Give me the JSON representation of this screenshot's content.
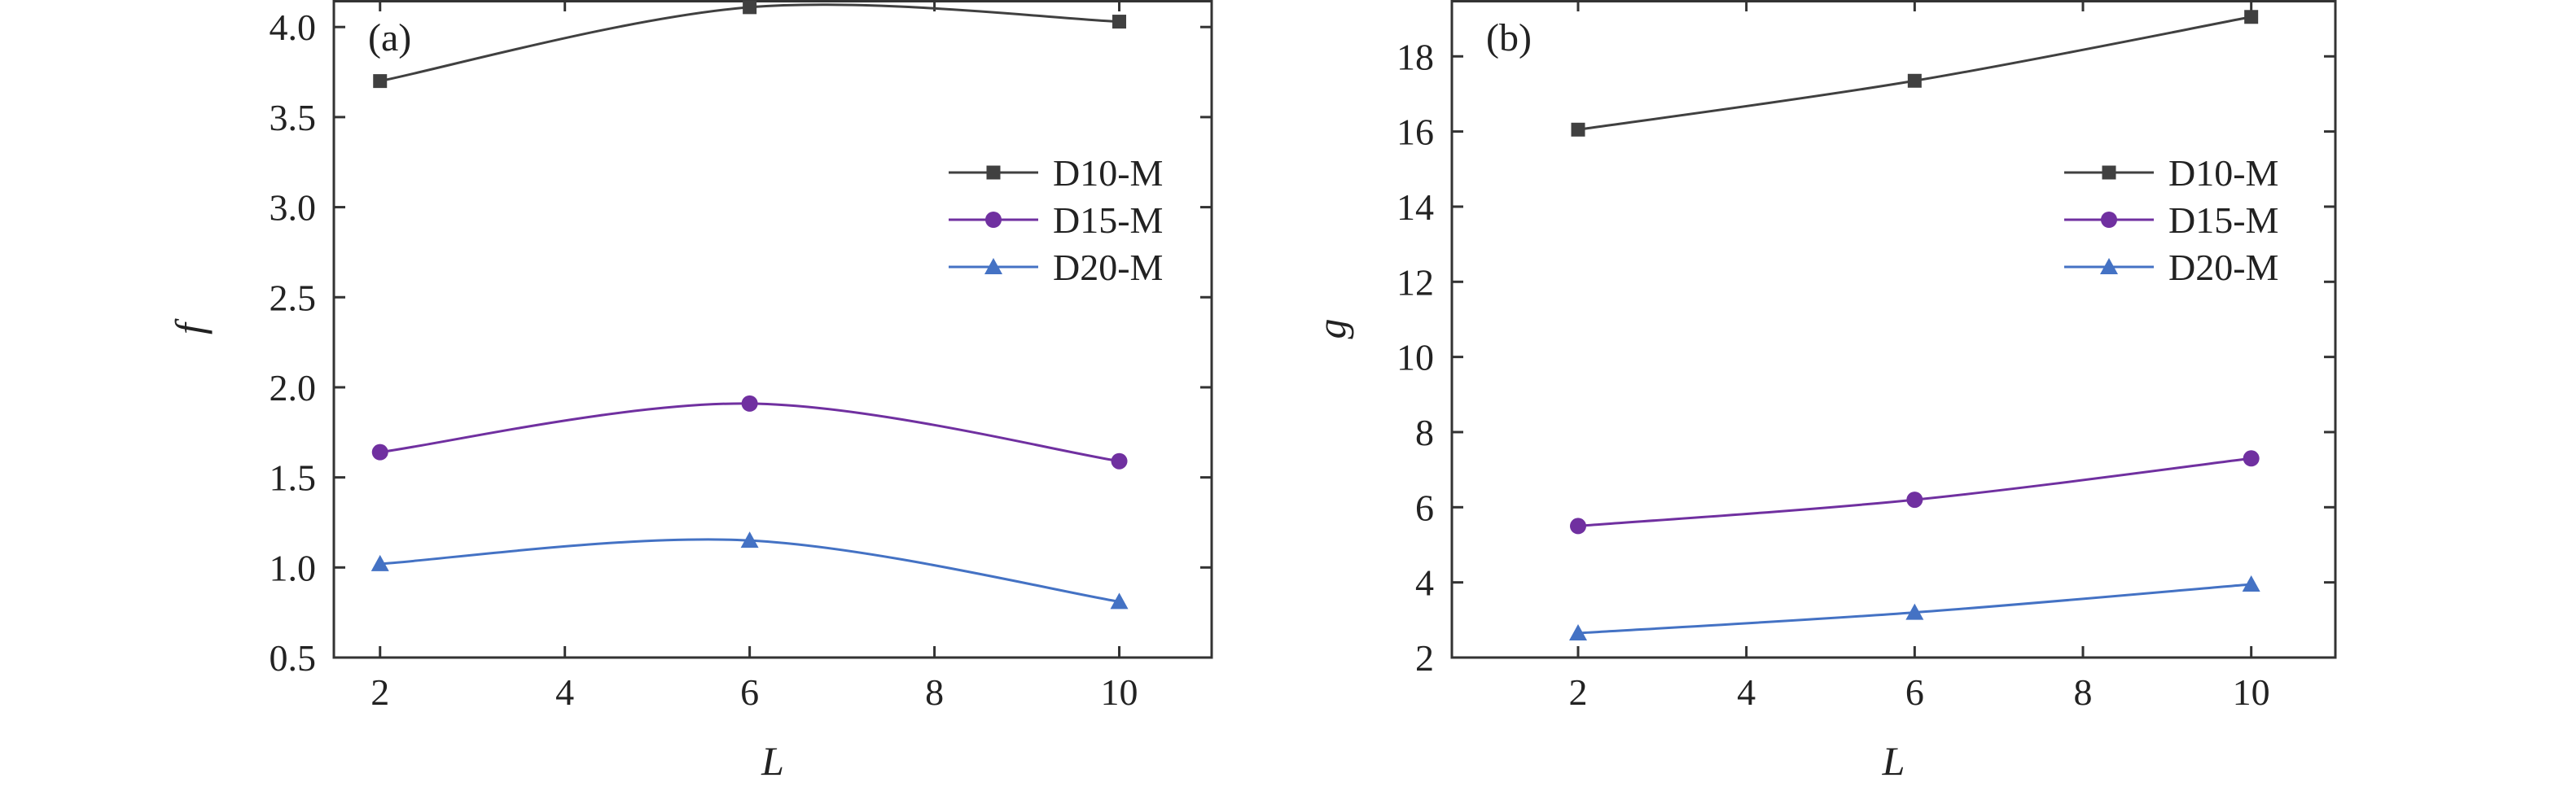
{
  "chart_data": [
    {
      "type": "line",
      "panel_label": "(a)",
      "xlabel": "L",
      "ylabel": "f",
      "x": [
        2,
        6,
        10
      ],
      "xlim": [
        1.5,
        11
      ],
      "ylim": [
        0.5,
        4.15
      ],
      "xticks": [
        2,
        4,
        6,
        8,
        10
      ],
      "yticks": [
        "0.5",
        "1.0",
        "1.5",
        "2.0",
        "2.5",
        "3.0",
        "3.5",
        "4.0"
      ],
      "grid": false,
      "legend_position": "right",
      "series": [
        {
          "name": "D10-M",
          "marker": "square",
          "color": "#404040",
          "values": [
            3.7,
            4.11,
            4.03
          ]
        },
        {
          "name": "D15-M",
          "marker": "circle",
          "color": "#7030a0",
          "values": [
            1.64,
            1.91,
            1.59
          ]
        },
        {
          "name": "D20-M",
          "marker": "triangle",
          "color": "#4472c4",
          "values": [
            1.02,
            1.15,
            0.81
          ]
        }
      ]
    },
    {
      "type": "line",
      "panel_label": "(b)",
      "xlabel": "L",
      "ylabel": "g",
      "x": [
        2,
        6,
        10
      ],
      "xlim": [
        0.5,
        11
      ],
      "ylim": [
        2,
        19.5
      ],
      "xticks": [
        2,
        4,
        6,
        8,
        10
      ],
      "yticks": [
        "2",
        "4",
        "6",
        "8",
        "10",
        "12",
        "14",
        "16",
        "18"
      ],
      "grid": false,
      "legend_position": "right",
      "series": [
        {
          "name": "D10-M",
          "marker": "square",
          "color": "#404040",
          "values": [
            16.05,
            17.35,
            19.05
          ]
        },
        {
          "name": "D15-M",
          "marker": "circle",
          "color": "#7030a0",
          "values": [
            5.5,
            6.2,
            7.3
          ]
        },
        {
          "name": "D20-M",
          "marker": "triangle",
          "color": "#4472c4",
          "values": [
            2.65,
            3.2,
            3.95
          ]
        }
      ]
    }
  ]
}
